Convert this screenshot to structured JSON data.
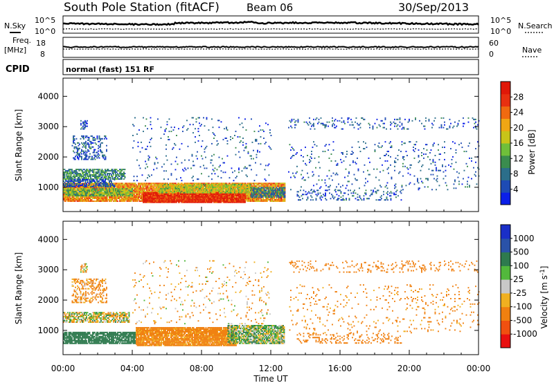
{
  "header": {
    "title": "South Pole Station (fitACF)",
    "beam": "Beam 06",
    "date": "30/Sep/2013"
  },
  "top_panels": {
    "nsky_label": "N.Sky",
    "nsearch_label": "N.Search",
    "noise_ticks": [
      "10^5",
      "10^0"
    ],
    "freq_label": "Freq.",
    "freq_unit": "[MHz]",
    "freq_ticks": [
      "18",
      "8"
    ],
    "nave_label": "Nave",
    "nave_ticks": [
      "60",
      "0"
    ],
    "cpid_label": "CPID",
    "cpid_value": "normal (fast) 151 RF"
  },
  "chart_data": [
    {
      "type": "heatmap",
      "name_panel": "power",
      "ylabel": "Slant Range [km]",
      "xlabel": "Time UT",
      "x_ticks": [
        "00:00",
        "04:00",
        "08:00",
        "12:00",
        "16:00",
        "20:00",
        "00:00"
      ],
      "xlim_hours": [
        0,
        24
      ],
      "y_ticks": [
        1000,
        2000,
        3000,
        4000
      ],
      "ylim": [
        200,
        4600
      ],
      "colorbar": {
        "label": "Power [dB]",
        "ticks": [
          4,
          8,
          12,
          16,
          20,
          24,
          28
        ],
        "range": [
          0,
          32
        ],
        "colors": [
          "#0b1fe8",
          "#1e4bb4",
          "#2b6e8a",
          "#3a8c4e",
          "#6fbf3a",
          "#c8c419",
          "#f0a614",
          "#f06a10",
          "#e83010",
          "#e01808"
        ]
      },
      "regions": [
        {
          "t0": 0.0,
          "t1": 12.8,
          "r0": 520,
          "r1": 1150,
          "value": 22,
          "density": 0.92
        },
        {
          "t0": 0.0,
          "t1": 4.0,
          "r0": 700,
          "r1": 950,
          "value": 14,
          "density": 0.85
        },
        {
          "t0": 0.0,
          "t1": 3.6,
          "r0": 1250,
          "r1": 1600,
          "value": 10,
          "density": 0.7
        },
        {
          "t0": 0.0,
          "t1": 3.0,
          "r0": 1000,
          "r1": 1250,
          "value": 6,
          "density": 0.55
        },
        {
          "t0": 4.6,
          "t1": 10.5,
          "r0": 480,
          "r1": 800,
          "value": 29,
          "density": 0.95
        },
        {
          "t0": 5.5,
          "t1": 10.8,
          "r0": 800,
          "r1": 1100,
          "value": 17,
          "density": 0.85
        },
        {
          "t0": 10.8,
          "t1": 12.8,
          "r0": 650,
          "r1": 1000,
          "value": 9,
          "density": 0.75
        },
        {
          "t0": 0.5,
          "t1": 2.5,
          "r0": 1900,
          "r1": 2700,
          "value": 6,
          "density": 0.35
        },
        {
          "t0": 1.0,
          "t1": 1.4,
          "r0": 2900,
          "r1": 3200,
          "value": 6,
          "density": 0.6
        },
        {
          "t0": 13.5,
          "t1": 19.5,
          "r0": 560,
          "r1": 900,
          "value": 6,
          "density": 0.22
        },
        {
          "t0": 13.0,
          "t1": 24.0,
          "r0": 900,
          "r1": 2500,
          "value": 6,
          "density": 0.06
        },
        {
          "t0": 13.0,
          "t1": 24.0,
          "r0": 2900,
          "r1": 3300,
          "value": 6,
          "density": 0.12
        },
        {
          "t0": 4.0,
          "t1": 12.0,
          "r0": 1200,
          "r1": 3300,
          "value": 6,
          "density": 0.05
        }
      ]
    },
    {
      "type": "heatmap",
      "name_panel": "velocity",
      "ylabel": "Slant Range [km]",
      "xlabel": "Time UT",
      "x_ticks": [
        "00:00",
        "04:00",
        "08:00",
        "12:00",
        "16:00",
        "20:00",
        "00:00"
      ],
      "xlim_hours": [
        0,
        24
      ],
      "y_ticks": [
        1000,
        2000,
        3000,
        4000
      ],
      "ylim": [
        200,
        4600
      ],
      "colorbar": {
        "label": "Velocity [m s^-1]",
        "ticks": [
          "1000",
          "500",
          "100",
          "25",
          "-25",
          "-100",
          "-500",
          "-1000"
        ],
        "colors": [
          "#1a2fc8",
          "#2a52a8",
          "#2e7a4e",
          "#52b83c",
          "#c8c8c8",
          "#f0b020",
          "#f08010",
          "#f05010",
          "#e81010"
        ]
      },
      "regions": [
        {
          "t0": 0.0,
          "t1": 4.2,
          "r0": 550,
          "r1": 950,
          "value": 300,
          "density": 0.85
        },
        {
          "t0": 0.0,
          "t1": 3.8,
          "r0": 1250,
          "r1": 1600,
          "value": 0,
          "density": 0.7
        },
        {
          "t0": 4.2,
          "t1": 10.0,
          "r0": 480,
          "r1": 1100,
          "value": -200,
          "density": 0.92
        },
        {
          "t0": 9.5,
          "t1": 12.8,
          "r0": 550,
          "r1": 1150,
          "value": 50,
          "density": 0.85
        },
        {
          "t0": 0.5,
          "t1": 2.5,
          "r0": 1900,
          "r1": 2700,
          "value": -150,
          "density": 0.35
        },
        {
          "t0": 1.0,
          "t1": 1.4,
          "r0": 2900,
          "r1": 3200,
          "value": -100,
          "density": 0.55
        },
        {
          "t0": 13.5,
          "t1": 19.5,
          "r0": 560,
          "r1": 900,
          "value": -300,
          "density": 0.2
        },
        {
          "t0": 13.0,
          "t1": 24.0,
          "r0": 900,
          "r1": 2500,
          "value": -200,
          "density": 0.06
        },
        {
          "t0": 13.0,
          "t1": 24.0,
          "r0": 2900,
          "r1": 3300,
          "value": -300,
          "density": 0.12
        },
        {
          "t0": 4.0,
          "t1": 12.0,
          "r0": 1200,
          "r1": 3300,
          "value": -100,
          "density": 0.05
        }
      ]
    }
  ]
}
